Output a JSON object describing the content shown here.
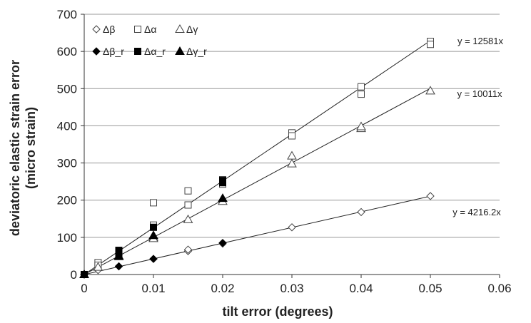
{
  "chart_data": {
    "type": "scatter",
    "xlabel": "tilt error (degrees)",
    "ylabel_lines": [
      "deviatoric elastic strain error",
      "(micro strain)"
    ],
    "xlim": [
      0,
      0.06
    ],
    "ylim": [
      0,
      700
    ],
    "x_ticks": [
      "0",
      "0.01",
      "0.02",
      "0.03",
      "0.04",
      "0.05",
      "0.06"
    ],
    "y_ticks": [
      "0",
      "100",
      "200",
      "300",
      "400",
      "500",
      "600",
      "700"
    ],
    "gridlines": "horizontal",
    "legend_position": "top-left",
    "series": [
      {
        "name": "Δβ",
        "marker": "diamond-open",
        "points": [
          [
            0,
            0
          ],
          [
            0.002,
            12
          ],
          [
            0.005,
            22
          ],
          [
            0.01,
            42
          ],
          [
            0.015,
            63
          ],
          [
            0.015,
            67
          ],
          [
            0.02,
            83
          ],
          [
            0.03,
            127
          ],
          [
            0.04,
            168
          ],
          [
            0.05,
            211
          ]
        ]
      },
      {
        "name": "Δα",
        "marker": "square-open",
        "points": [
          [
            0,
            0
          ],
          [
            0.002,
            32
          ],
          [
            0.002,
            25
          ],
          [
            0.005,
            65
          ],
          [
            0.005,
            58
          ],
          [
            0.01,
            193
          ],
          [
            0.01,
            133
          ],
          [
            0.015,
            225
          ],
          [
            0.015,
            187
          ],
          [
            0.02,
            255
          ],
          [
            0.02,
            243
          ],
          [
            0.03,
            381
          ],
          [
            0.03,
            373
          ],
          [
            0.04,
            505
          ],
          [
            0.04,
            485
          ],
          [
            0.05,
            627
          ],
          [
            0.05,
            619
          ]
        ]
      },
      {
        "name": "Δγ",
        "marker": "triangle-open",
        "points": [
          [
            0,
            0
          ],
          [
            0.002,
            20
          ],
          [
            0.005,
            48
          ],
          [
            0.01,
            100
          ],
          [
            0.01,
            97
          ],
          [
            0.015,
            148
          ],
          [
            0.02,
            197
          ],
          [
            0.03,
            319
          ],
          [
            0.03,
            298
          ],
          [
            0.04,
            393
          ],
          [
            0.04,
            398
          ],
          [
            0.05,
            494
          ]
        ]
      },
      {
        "name": "Δβ_r",
        "marker": "diamond-filled",
        "points": [
          [
            0,
            0
          ],
          [
            0.005,
            22
          ],
          [
            0.01,
            42
          ],
          [
            0.02,
            85
          ]
        ]
      },
      {
        "name": "Δα_r",
        "marker": "square-filled",
        "points": [
          [
            0,
            0
          ],
          [
            0.005,
            65
          ],
          [
            0.005,
            50
          ],
          [
            0.01,
            127
          ],
          [
            0.02,
            253
          ],
          [
            0.02,
            247
          ]
        ]
      },
      {
        "name": "Δγ_r",
        "marker": "triangle-filled",
        "points": [
          [
            0,
            0
          ],
          [
            0.005,
            50
          ],
          [
            0.01,
            105
          ],
          [
            0.02,
            205
          ]
        ]
      }
    ],
    "trendlines": [
      {
        "label": "y = 12581x",
        "slope": 12581,
        "x_end": 0.05
      },
      {
        "label": "y = 10011x",
        "slope": 10011,
        "x_end": 0.05
      },
      {
        "label": "y = 4216.2x",
        "slope": 4216.2,
        "x_end": 0.05
      }
    ]
  }
}
